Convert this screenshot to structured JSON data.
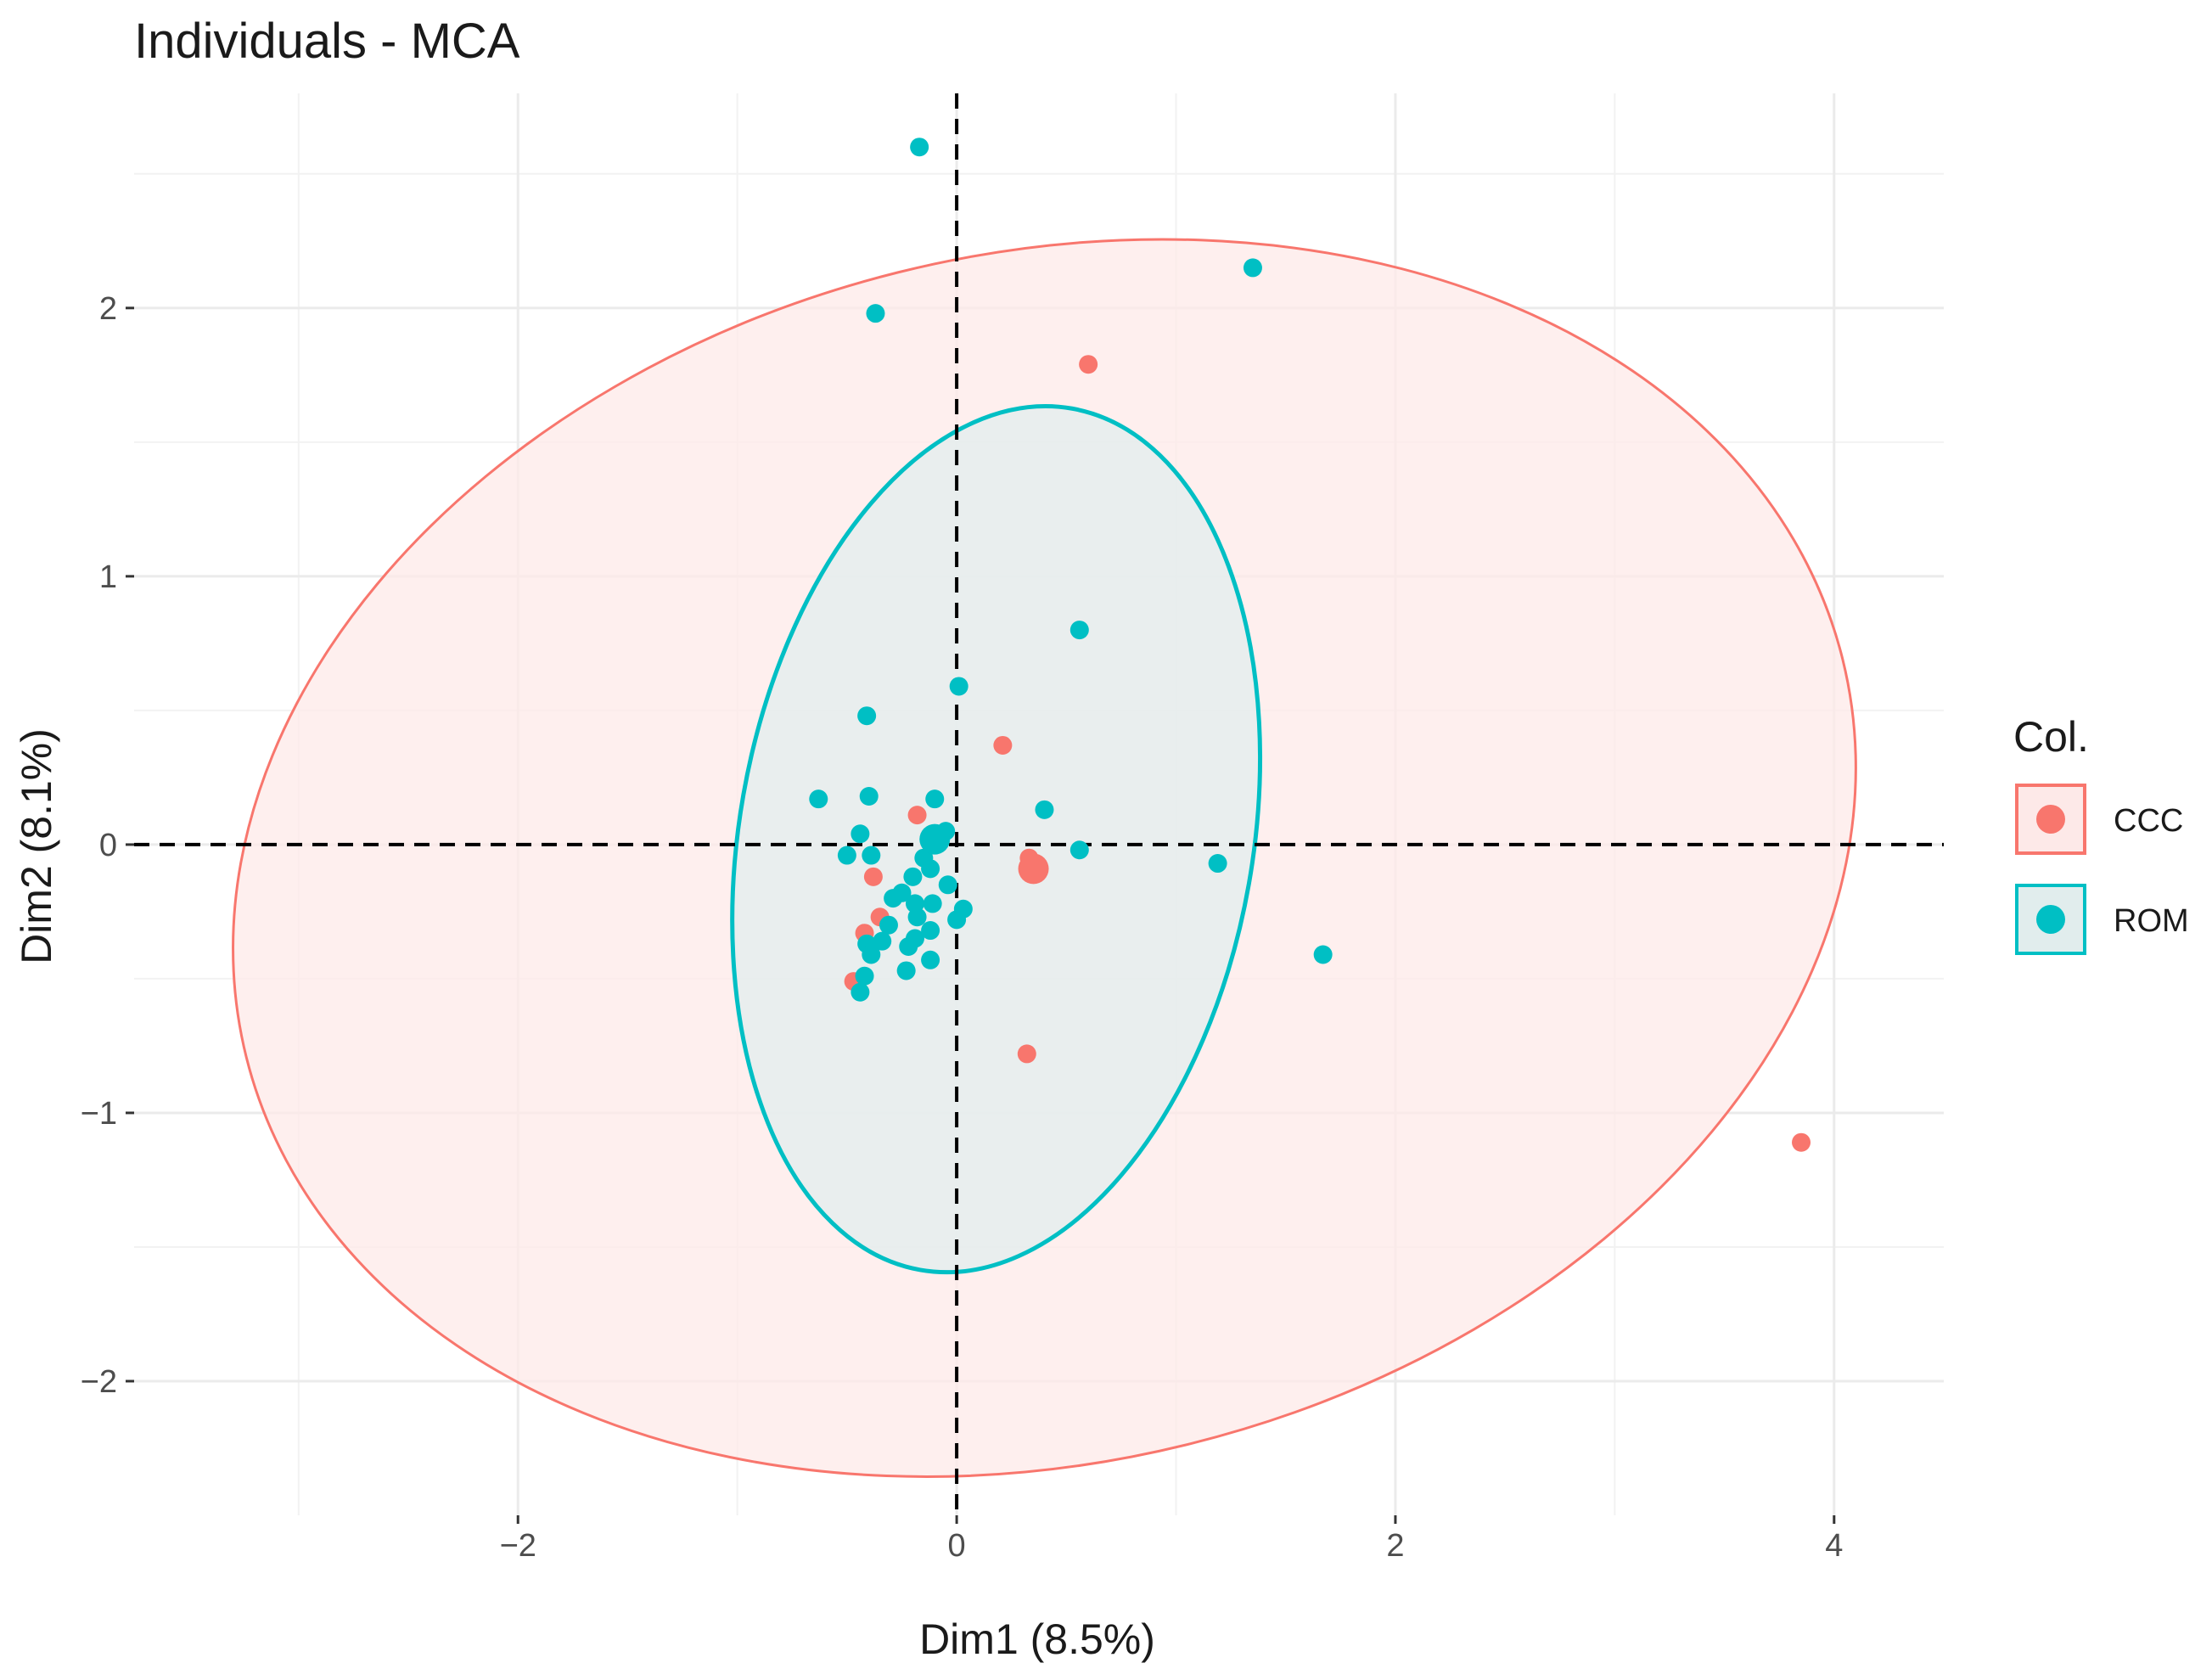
{
  "chart_data": {
    "type": "scatter",
    "title": "Individuals - MCA",
    "xlabel": "Dim1 (8.5%)",
    "ylabel": "Dim2 (8.1%)",
    "xlim": [
      -3.75,
      4.5
    ],
    "ylim": [
      -2.5,
      2.8
    ],
    "x_ticks": [
      -2,
      0,
      2,
      4
    ],
    "y_ticks": [
      -2,
      -1,
      0,
      1,
      2
    ],
    "x_tick_labels": [
      "−2",
      "0",
      "2",
      "4"
    ],
    "y_tick_labels": [
      "−2",
      "−1",
      "0",
      "1",
      "2"
    ],
    "grid": true,
    "reference_lines": {
      "x": 0,
      "y": 0,
      "style": "dashed"
    },
    "legend": {
      "title": "Col.",
      "position": "right",
      "entries": [
        {
          "label": "CCC",
          "color": "#F8766D"
        },
        {
          "label": "ROM",
          "color": "#00BFC4"
        }
      ]
    },
    "series": [
      {
        "name": "CCC",
        "color": "#F8766D",
        "fill": "#FDE9E8",
        "centroid": [
          0.35,
          -0.09
        ],
        "ellipse": {
          "center": [
            0.4,
            -0.05
          ],
          "rx": 3.75,
          "ry": 2.25,
          "angle_deg": -14
        },
        "points": [
          [
            0.6,
            1.79
          ],
          [
            0.21,
            0.37
          ],
          [
            -0.18,
            0.11
          ],
          [
            0.33,
            -0.05
          ],
          [
            -0.38,
            -0.12
          ],
          [
            -0.42,
            -0.33
          ],
          [
            -0.35,
            -0.27
          ],
          [
            -0.47,
            -0.51
          ],
          [
            0.32,
            -0.78
          ],
          [
            3.85,
            -1.11
          ]
        ]
      },
      {
        "name": "ROM",
        "color": "#00BFC4",
        "fill": "#E1EDED",
        "centroid": [
          -0.1,
          0.02
        ],
        "ellipse": {
          "center": [
            0.18,
            0.02
          ],
          "rx": 1.17,
          "ry": 1.63,
          "angle_deg": 10
        },
        "points": [
          [
            -0.17,
            2.6
          ],
          [
            1.35,
            2.15
          ],
          [
            -0.37,
            1.98
          ],
          [
            0.56,
            0.8
          ],
          [
            0.01,
            0.59
          ],
          [
            -0.41,
            0.48
          ],
          [
            -0.63,
            0.17
          ],
          [
            -0.4,
            0.18
          ],
          [
            -0.1,
            0.17
          ],
          [
            -0.05,
            0.05
          ],
          [
            0.4,
            0.13
          ],
          [
            -0.44,
            0.04
          ],
          [
            -0.5,
            -0.04
          ],
          [
            -0.39,
            -0.04
          ],
          [
            -0.15,
            -0.05
          ],
          [
            0.56,
            -0.02
          ],
          [
            1.19,
            -0.07
          ],
          [
            -0.12,
            -0.09
          ],
          [
            -0.2,
            -0.12
          ],
          [
            -0.04,
            -0.15
          ],
          [
            -0.25,
            -0.18
          ],
          [
            -0.29,
            -0.2
          ],
          [
            -0.19,
            -0.22
          ],
          [
            -0.11,
            -0.22
          ],
          [
            0.03,
            -0.24
          ],
          [
            0.0,
            -0.28
          ],
          [
            -0.18,
            -0.27
          ],
          [
            -0.31,
            -0.3
          ],
          [
            -0.12,
            -0.32
          ],
          [
            -0.19,
            -0.35
          ],
          [
            -0.34,
            -0.36
          ],
          [
            -0.41,
            -0.37
          ],
          [
            -0.22,
            -0.38
          ],
          [
            -0.39,
            -0.41
          ],
          [
            -0.12,
            -0.43
          ],
          [
            -0.23,
            -0.47
          ],
          [
            -0.42,
            -0.49
          ],
          [
            -0.44,
            -0.55
          ],
          [
            1.67,
            -0.41
          ]
        ]
      }
    ]
  }
}
